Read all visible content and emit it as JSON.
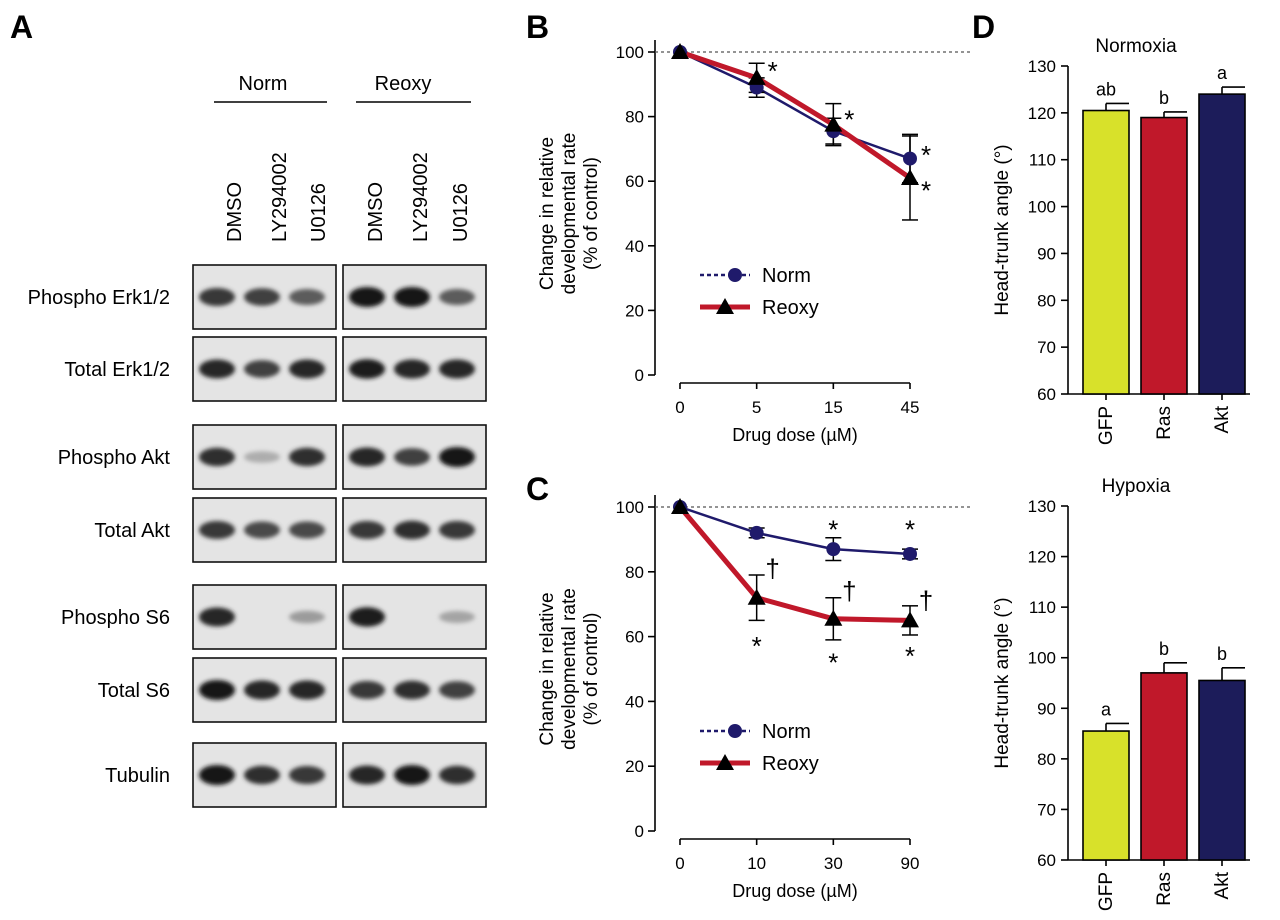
{
  "panelA": {
    "letter": "A",
    "groups": [
      "Norm",
      "Reoxy"
    ],
    "lanes": [
      "DMSO",
      "LY294002",
      "U0126",
      "DMSO",
      "LY294002",
      "U0126"
    ],
    "rows": [
      {
        "label": "Phospho Erk1/2",
        "intensity": [
          0.8,
          0.75,
          0.6,
          1.0,
          1.0,
          0.6
        ]
      },
      {
        "label": "Total Erk1/2",
        "intensity": [
          0.9,
          0.75,
          0.9,
          0.95,
          0.9,
          0.9
        ]
      },
      {
        "label": "Phospho Akt",
        "intensity": [
          0.85,
          0.15,
          0.85,
          0.9,
          0.75,
          1.0
        ]
      },
      {
        "label": "Total Akt",
        "intensity": [
          0.8,
          0.7,
          0.7,
          0.8,
          0.85,
          0.8
        ]
      },
      {
        "label": "Phospho S6",
        "intensity": [
          0.9,
          0.0,
          0.25,
          0.95,
          0.0,
          0.2
        ]
      },
      {
        "label": "Total S6",
        "intensity": [
          1.0,
          0.9,
          0.9,
          0.8,
          0.85,
          0.75
        ]
      },
      {
        "label": "Tubulin",
        "intensity": [
          1.0,
          0.85,
          0.8,
          0.9,
          1.0,
          0.85
        ]
      }
    ]
  },
  "chart_data": [
    {
      "panel": "B",
      "type": "line",
      "ylabel": [
        "Change in relative",
        "developmental rate",
        "(% of control)"
      ],
      "xlabel": "Drug dose (µM)",
      "categories": [
        "0",
        "5",
        "15",
        "45"
      ],
      "ylim": [
        0,
        100
      ],
      "yticks": [
        0,
        20,
        40,
        60,
        80,
        100
      ],
      "reference_line": 100,
      "series": [
        {
          "name": "Norm",
          "values": [
            100,
            89,
            75.5,
            67
          ],
          "errors": [
            0,
            3,
            4,
            7.5
          ],
          "marker": "circle",
          "color": "#1f1a6b",
          "dashed": true
        },
        {
          "name": "Reoxy",
          "values": [
            100,
            92,
            77.5,
            61
          ],
          "errors": [
            0,
            4.5,
            6.5,
            13
          ],
          "marker": "triangle",
          "color": "#c0182a",
          "dashed": false
        }
      ],
      "annotations": [
        {
          "x": "5",
          "y": 95,
          "text": "*"
        },
        {
          "x": "15",
          "y": 80,
          "text": "*"
        },
        {
          "x": "45",
          "y": 69,
          "text": "*"
        },
        {
          "x": "45",
          "y": 58,
          "text": "*"
        }
      ]
    },
    {
      "panel": "C",
      "type": "line",
      "ylabel": [
        "Change in relative",
        "developmental rate",
        "(% of control)"
      ],
      "xlabel": "Drug dose (µM)",
      "categories": [
        "0",
        "10",
        "30",
        "90"
      ],
      "ylim": [
        0,
        100
      ],
      "yticks": [
        0,
        20,
        40,
        60,
        80,
        100
      ],
      "reference_line": 100,
      "series": [
        {
          "name": "Norm",
          "values": [
            100,
            92,
            87,
            85.5
          ],
          "errors": [
            0,
            1.5,
            3.5,
            1.5
          ],
          "marker": "circle",
          "color": "#1f1a6b",
          "dashed": true
        },
        {
          "name": "Reoxy",
          "values": [
            100,
            72,
            65.5,
            65
          ],
          "errors": [
            0,
            7,
            6.5,
            4.5
          ],
          "marker": "triangle",
          "color": "#c0182a",
          "dashed": false
        }
      ],
      "annotations": [
        {
          "x": "30",
          "y": 94,
          "text": "*"
        },
        {
          "x": "90",
          "y": 94,
          "text": "*"
        },
        {
          "x": "10",
          "y": 58,
          "text": "*"
        },
        {
          "x": "30",
          "y": 53,
          "text": "*"
        },
        {
          "x": "90",
          "y": 55,
          "text": "*"
        },
        {
          "x": "10",
          "y": 82,
          "text": "†"
        },
        {
          "x": "30",
          "y": 75,
          "text": "†"
        },
        {
          "x": "90",
          "y": 72,
          "text": "†"
        }
      ]
    },
    {
      "panel": "D",
      "type": "bar",
      "title": "Normoxia",
      "ylabel": "Head-trunk angle (°)",
      "categories": [
        "GFP",
        "Ras",
        "Akt"
      ],
      "values": [
        120.5,
        119,
        124
      ],
      "errors": [
        1.5,
        1.2,
        1.5
      ],
      "letters": [
        "ab",
        "b",
        "a"
      ],
      "colors": [
        "#d8e12a",
        "#c0182a",
        "#1c1c5a"
      ],
      "ylim": [
        60,
        130
      ],
      "yticks": [
        60,
        70,
        80,
        90,
        100,
        110,
        120,
        130
      ]
    },
    {
      "panel": "D",
      "type": "bar",
      "title": "Hypoxia",
      "ylabel": "Head-trunk angle (°)",
      "categories": [
        "GFP",
        "Ras",
        "Akt"
      ],
      "values": [
        85.5,
        97,
        95.5
      ],
      "errors": [
        1.5,
        2,
        2.5
      ],
      "letters": [
        "a",
        "b",
        "b"
      ],
      "colors": [
        "#d8e12a",
        "#c0182a",
        "#1c1c5a"
      ],
      "ylim": [
        60,
        130
      ],
      "yticks": [
        60,
        70,
        80,
        90,
        100,
        110,
        120,
        130
      ]
    }
  ],
  "letters": {
    "B": "B",
    "C": "C",
    "D": "D"
  }
}
